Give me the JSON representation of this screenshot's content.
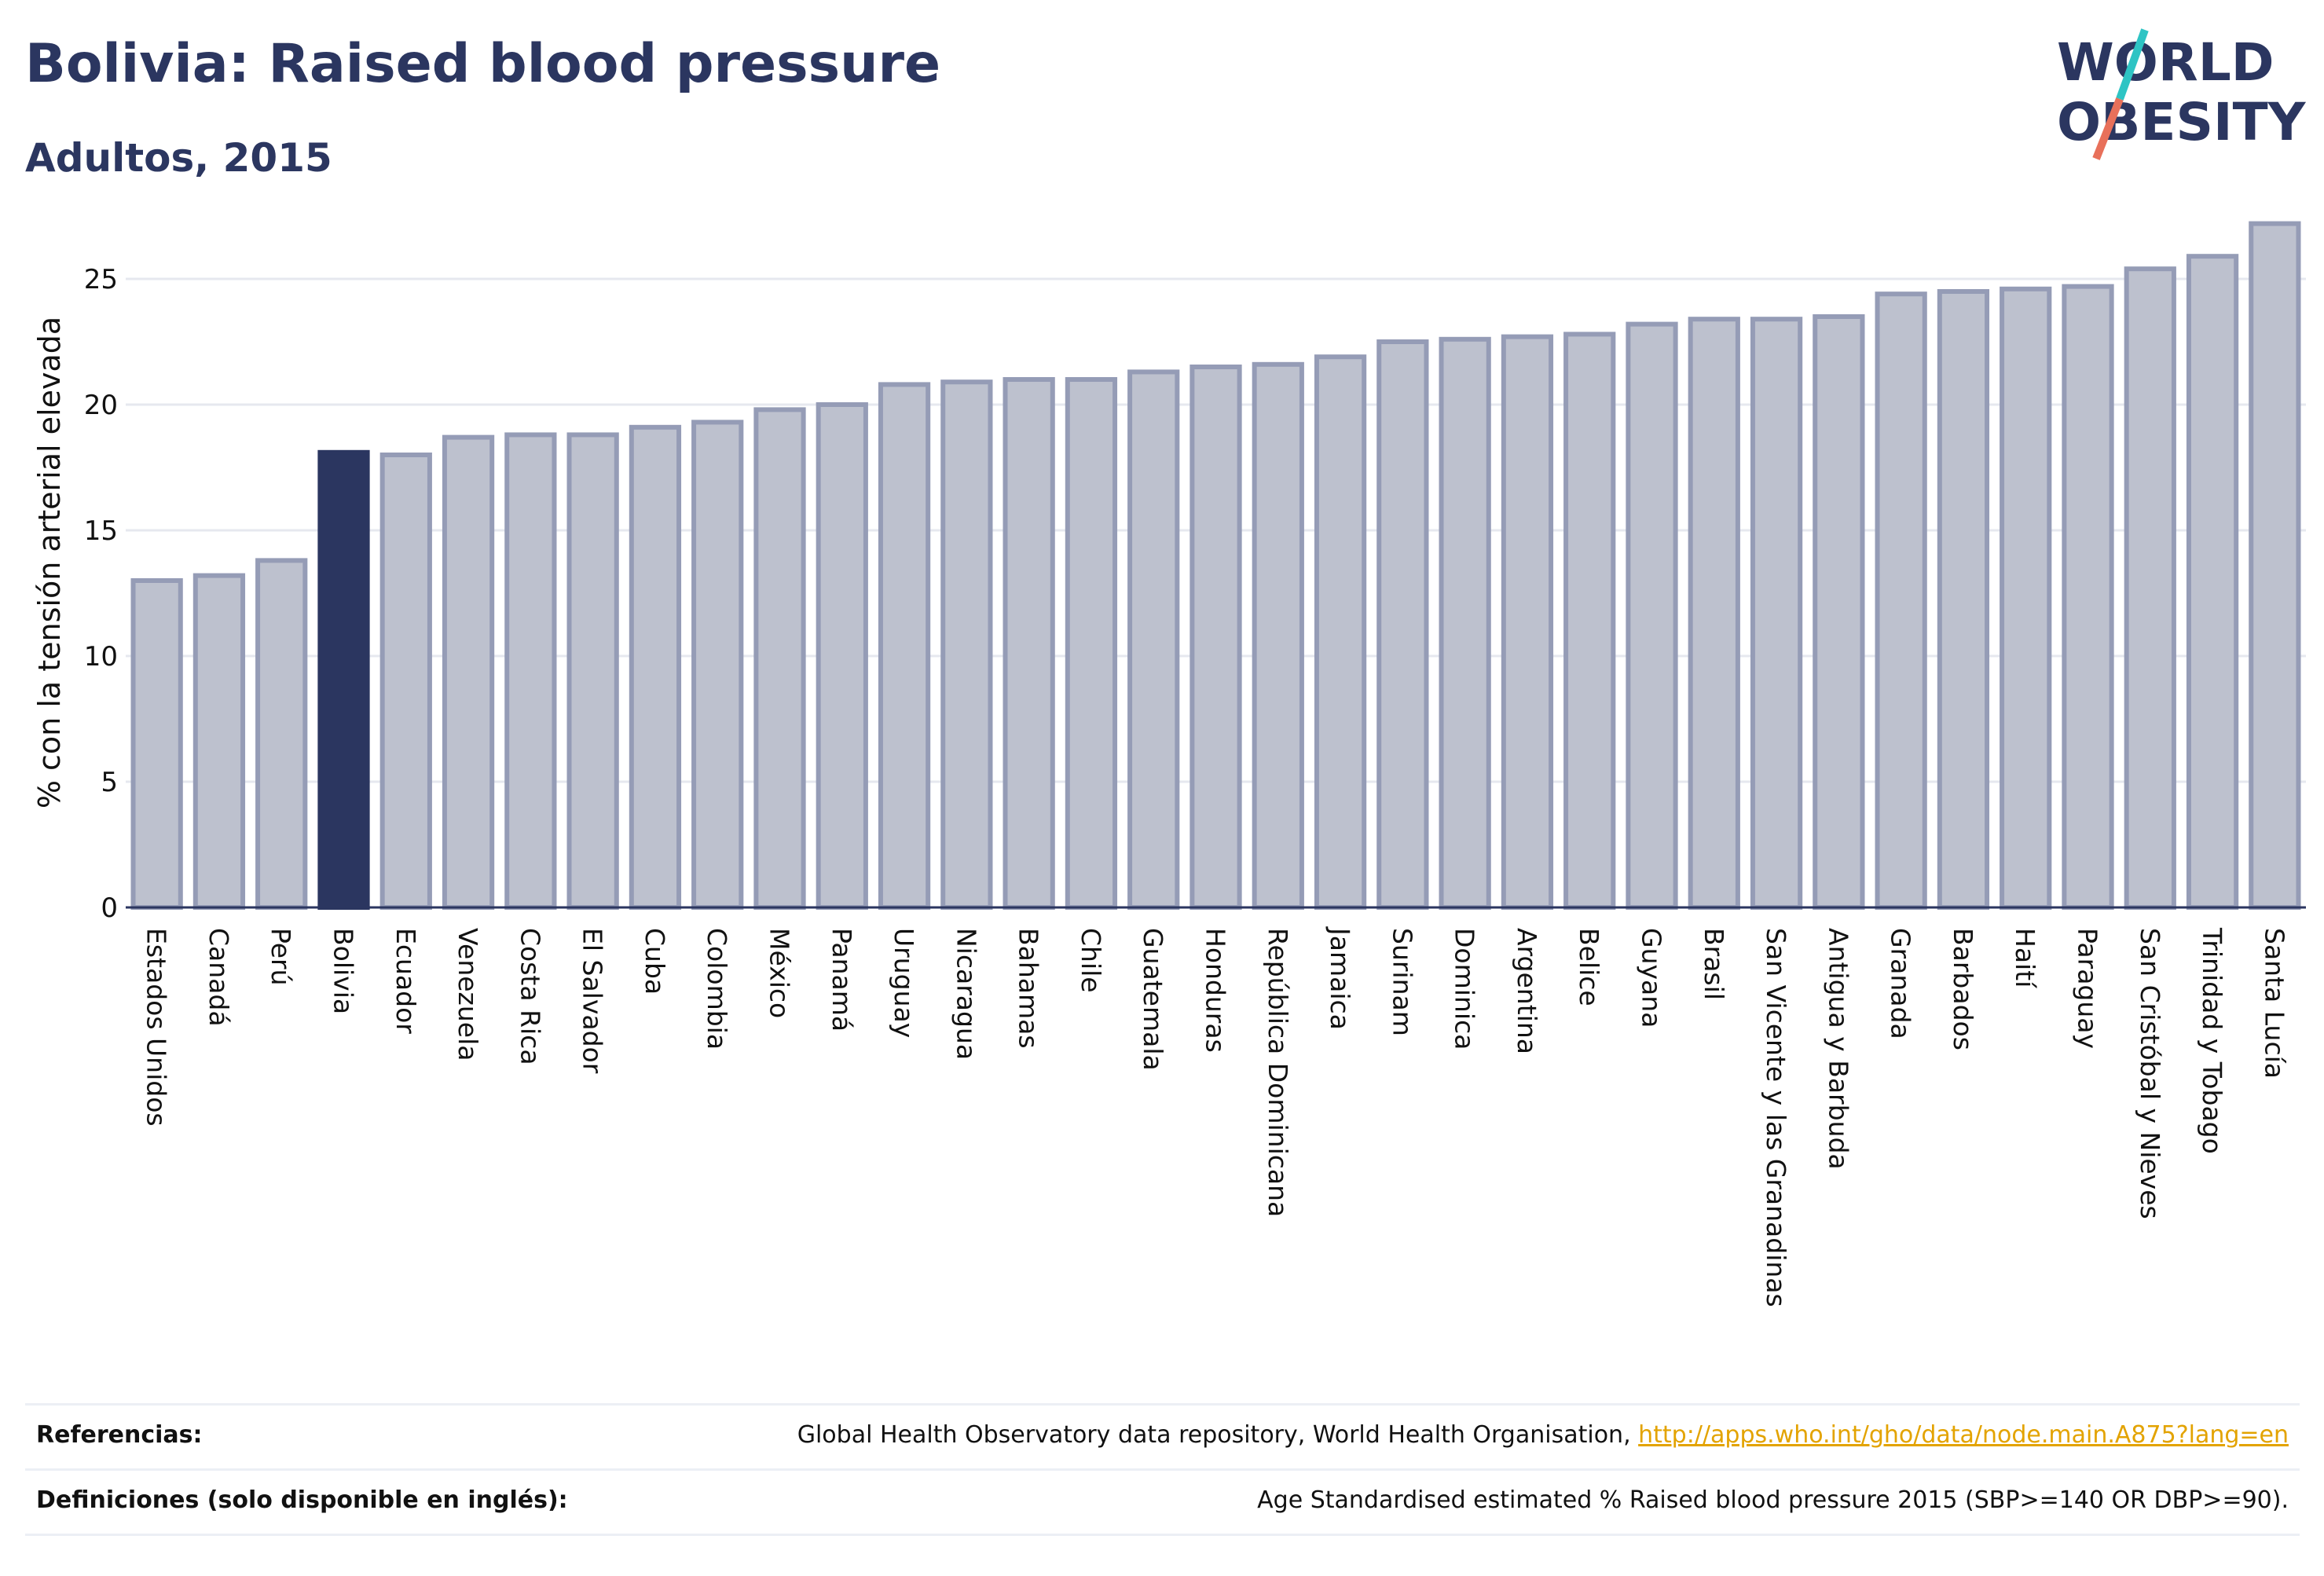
{
  "title": "Bolivia: Raised blood pressure",
  "subtitle": "Adultos, 2015",
  "logo": {
    "line1": "WORLD",
    "line2": "OBESITY",
    "accent_teal": "#2ec4c4",
    "accent_coral": "#e8705a"
  },
  "colors": {
    "bar": "#bdc1ce",
    "bar_border": "#959cb6",
    "highlight": "#2b3660",
    "grid": "#e6e8ef",
    "axis": "#2b3660"
  },
  "chart_data": {
    "type": "bar",
    "ylabel": "% con la tensión arterial elevada",
    "xlabel": "",
    "ylim": [
      0,
      27.5
    ],
    "yticks": [
      0,
      5,
      10,
      15,
      20,
      25
    ],
    "grid": true,
    "highlight": "Bolivia",
    "categories": [
      "Estados Unidos",
      "Canadá",
      "Perú",
      "Bolivia",
      "Ecuador",
      "Venezuela",
      "Costa Rica",
      "El Salvador",
      "Cuba",
      "Colombia",
      "México",
      "Panamá",
      "Uruguay",
      "Nicaragua",
      "Bahamas",
      "Chile",
      "Guatemala",
      "Honduras",
      "República Dominicana",
      "Jamaica",
      "Surinam",
      "Dominica",
      "Argentina",
      "Belice",
      "Guyana",
      "Brasil",
      "San Vicente y las Granadinas",
      "Antigua y Barbuda",
      "Granada",
      "Barbados",
      "Haití",
      "Paraguay",
      "San Cristóbal y Nieves",
      "Trinidad y Tobago",
      "Santa Lucía"
    ],
    "values": [
      13.0,
      13.2,
      13.8,
      18.1,
      18.0,
      18.7,
      18.8,
      18.8,
      19.1,
      19.3,
      19.8,
      20.0,
      20.8,
      20.9,
      21.0,
      21.0,
      21.3,
      21.5,
      21.6,
      21.9,
      22.5,
      22.6,
      22.7,
      22.8,
      23.2,
      23.4,
      23.4,
      23.5,
      24.4,
      24.5,
      24.6,
      24.7,
      25.4,
      25.9,
      27.2
    ]
  },
  "footer": {
    "references_label": "Referencias:",
    "references_text": "Global Health Observatory data repository, World Health Organisation, ",
    "references_link": "http://apps.who.int/gho/data/node.main.A875?lang=en",
    "definitions_label": "Definiciones (solo disponible en inglés):",
    "definitions_text": "Age Standardised estimated % Raised blood pressure 2015 (SBP>=140 OR DBP>=90)."
  }
}
